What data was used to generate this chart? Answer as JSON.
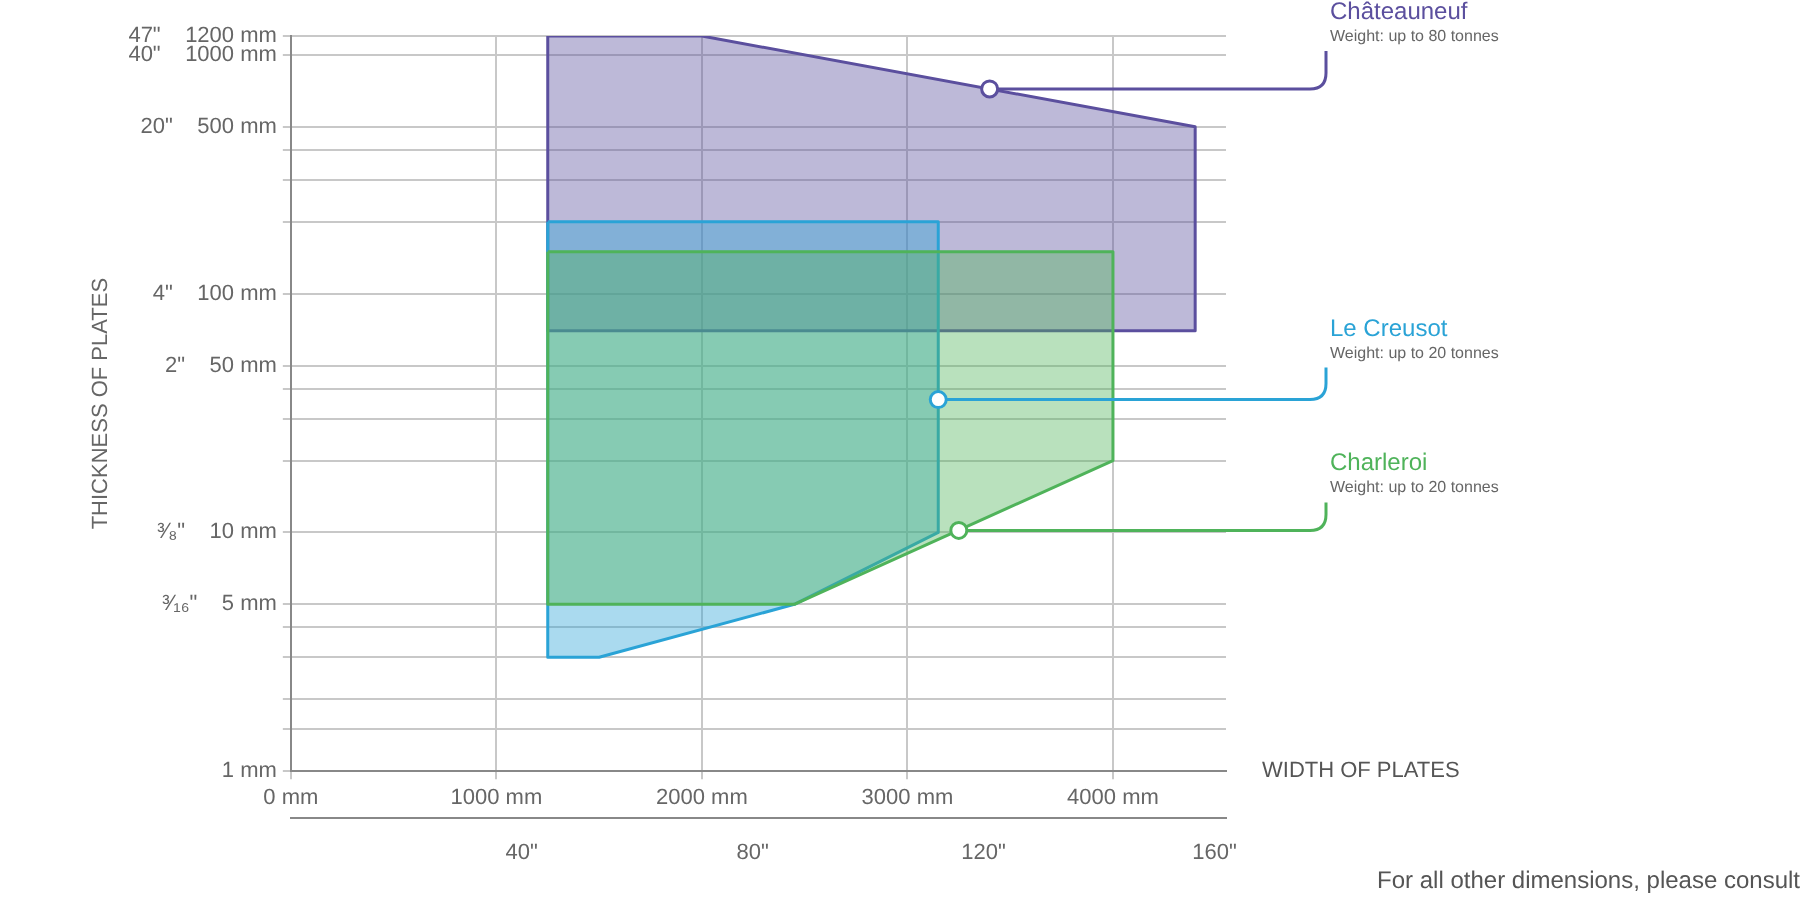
{
  "chart_data": {
    "type": "area",
    "ylabel": "THICKNESS OF PLATES",
    "xlabel": "WIDTH OF PLATES",
    "xlim": [
      0,
      4550
    ],
    "xticks": [
      {
        "value": 0,
        "label": "0 mm"
      },
      {
        "value": 1000,
        "label": "1000 mm"
      },
      {
        "value": 2000,
        "label": "2000 mm"
      },
      {
        "value": 3000,
        "label": "3000 mm"
      },
      {
        "value": 4000,
        "label": "4000 mm"
      }
    ],
    "x2lim": [
      0,
      162
    ],
    "x2ticks": [
      {
        "value": 40,
        "label": "40\""
      },
      {
        "value": 80,
        "label": "80\""
      },
      {
        "value": 120,
        "label": "120\""
      },
      {
        "value": 160,
        "label": "160\""
      }
    ],
    "log": "y",
    "ylim": [
      1,
      1200
    ],
    "yticks": [
      {
        "value": 1,
        "label": "1 mm"
      },
      {
        "value": 1.5,
        "label": null
      },
      {
        "value": 2,
        "label": null
      },
      {
        "value": 3,
        "label": null
      },
      {
        "value": 4,
        "label": null
      },
      {
        "value": 5,
        "label": "³⁄₁₆\"    5 mm"
      },
      {
        "value": 10,
        "label": "³⁄₈\"    10 mm"
      },
      {
        "value": 20,
        "label": null
      },
      {
        "value": 30,
        "label": null
      },
      {
        "value": 40,
        "label": null
      },
      {
        "value": 50,
        "label": "2\"    50 mm"
      },
      {
        "value": 100,
        "label": "4\"    100 mm"
      },
      {
        "value": 200,
        "label": null
      },
      {
        "value": 300,
        "label": null
      },
      {
        "value": 400,
        "label": null
      },
      {
        "value": 500,
        "label": "20\"    500 mm"
      },
      {
        "value": 1000,
        "label": "40\"    1000 mm"
      },
      {
        "value": 1200,
        "label": "47\"    1200 mm"
      }
    ],
    "grid": true,
    "legend": false,
    "marker": "none",
    "series": [
      {
        "name": "Châteauneuf",
        "color": "#5b4f9e",
        "x": [
          1250,
          2000,
          4400,
          4400,
          1250,
          1250
        ],
        "values": [
          1200,
          1200,
          500,
          70,
          70,
          1200
        ]
      },
      {
        "name": "Le Creusot",
        "color": "#2aa3d6",
        "x": [
          1250,
          3150,
          3150,
          2450,
          1500,
          1250,
          1250
        ],
        "values": [
          200,
          200,
          10,
          5,
          3,
          3,
          200
        ]
      },
      {
        "name": "Charleroi",
        "color": "#4fb35a",
        "x": [
          1250,
          4000,
          4000,
          2450,
          1250,
          1250
        ],
        "values": [
          150,
          150,
          20,
          5,
          5,
          150
        ]
      }
    ],
    "annotations": [
      {
        "text": "Weight: up to 80 tonnes",
        "x": 3400,
        "y": 720
      },
      {
        "text": "Weight: up to 20 tonnes",
        "x": 3150,
        "y": 36
      },
      {
        "text": "Weight: up to 20 tonnes",
        "x": 3250,
        "y": 10.2
      },
      "For all other dimensions, please consult"
    ]
  }
}
